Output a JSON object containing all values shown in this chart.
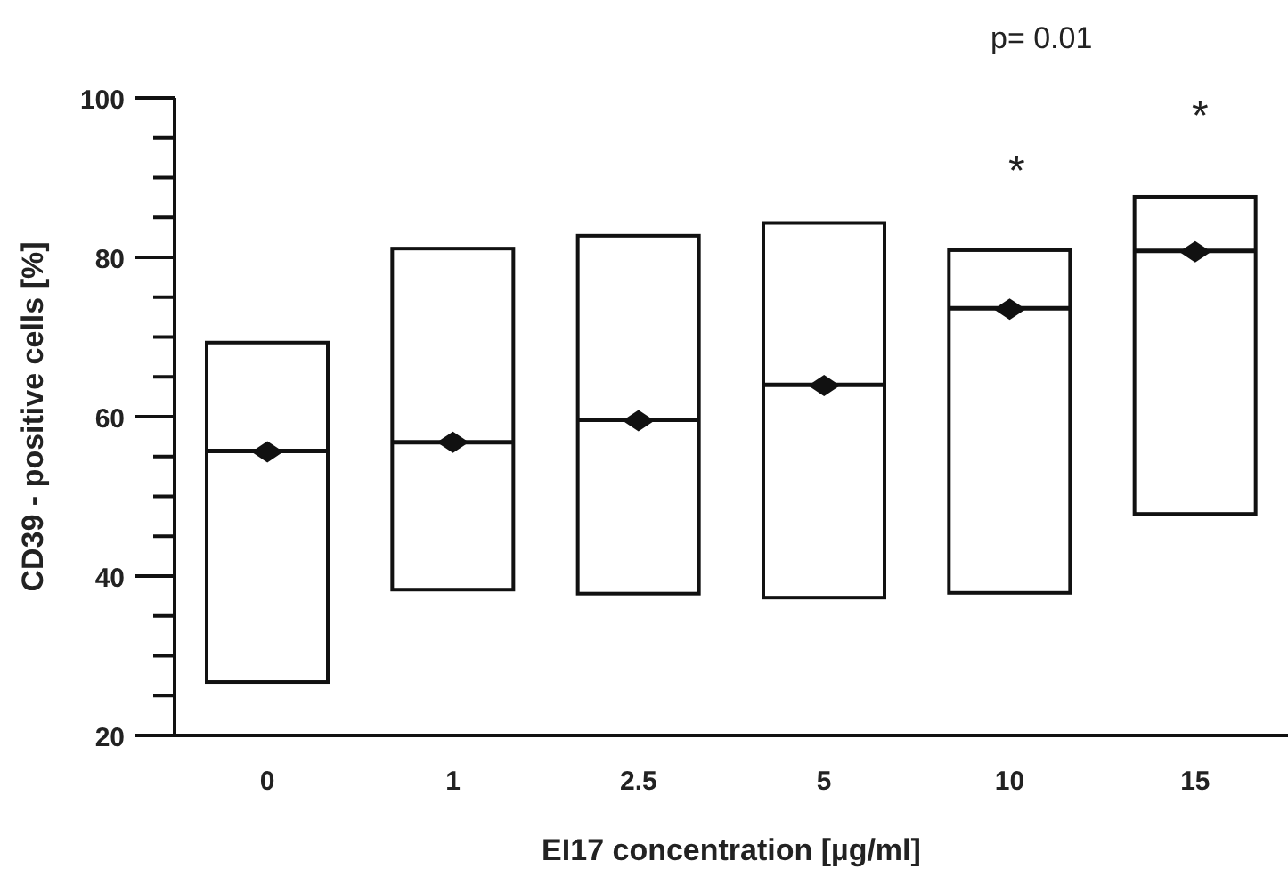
{
  "chart_data": {
    "type": "box",
    "xlabel": "EI17 concentration [µg/ml]",
    "ylabel": "CD39 - positive cells [%]",
    "categories": [
      "0",
      "1",
      "2.5",
      "5",
      "10",
      "15"
    ],
    "boxes": [
      {
        "low": 26.7,
        "q1": 26.7,
        "median": 55.7,
        "q3": 69.3,
        "high": 69.3,
        "mean": 55.6
      },
      {
        "low": 38.3,
        "q1": 38.3,
        "median": 56.8,
        "q3": 81.1,
        "high": 81.1,
        "mean": 56.8
      },
      {
        "low": 37.8,
        "q1": 37.8,
        "median": 59.6,
        "q3": 82.7,
        "high": 82.7,
        "mean": 59.5
      },
      {
        "low": 37.3,
        "q1": 37.3,
        "median": 64,
        "q3": 84.3,
        "high": 84.3,
        "mean": 63.9
      },
      {
        "low": 37.9,
        "q1": 37.9,
        "median": 73.6,
        "q3": 80.9,
        "high": 80.9,
        "mean": 73.5
      },
      {
        "low": 47.8,
        "q1": 47.8,
        "median": 80.8,
        "q3": 87.6,
        "high": 87.6,
        "mean": 80.7
      }
    ],
    "marker": "diamond",
    "ylim": [
      20,
      100
    ],
    "yticks": [
      20,
      {
        "value": 25,
        "label": null
      },
      {
        "value": 30,
        "label": null
      },
      {
        "value": 35,
        "label": null
      },
      40,
      {
        "value": 45,
        "label": null
      },
      {
        "value": 50,
        "label": null
      },
      {
        "value": 55,
        "label": null
      },
      60,
      {
        "value": 65,
        "label": null
      },
      {
        "value": 70,
        "label": null
      },
      {
        "value": 75,
        "label": null
      },
      80,
      {
        "value": 85,
        "label": null
      },
      {
        "value": 90,
        "label": null
      },
      {
        "value": 95,
        "label": null
      },
      100
    ],
    "annotations": [
      "p= 0.01",
      "*",
      "*"
    ]
  }
}
